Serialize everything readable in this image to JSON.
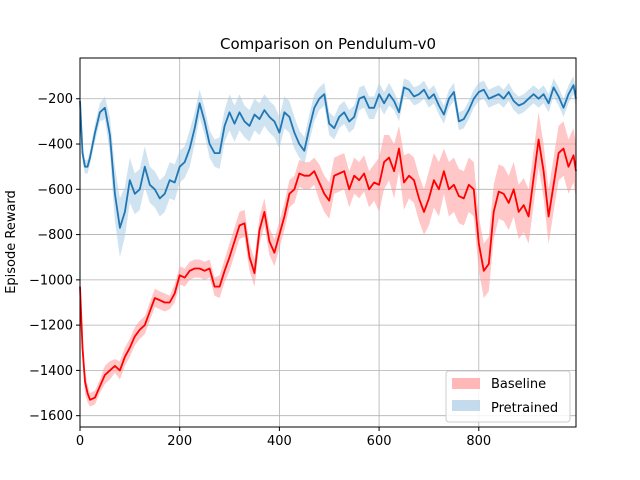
{
  "chart_data": {
    "type": "line",
    "title": "Comparison on Pendulum-v0",
    "xlabel": "",
    "ylabel": "Episode Reward",
    "xlim": [
      0,
      995
    ],
    "ylim": [
      -1650,
      -20
    ],
    "xticks": [
      0,
      200,
      400,
      600,
      800
    ],
    "yticks": [
      -1600,
      -1400,
      -1200,
      -1000,
      -800,
      -600,
      -400,
      -200
    ],
    "grid": true,
    "legend_position": "lower-right",
    "series": [
      {
        "name": "Baseline",
        "color": "#ff0000",
        "band_color": "#ff9999",
        "x": [
          0,
          5,
          10,
          15,
          20,
          30,
          40,
          50,
          60,
          70,
          80,
          90,
          100,
          110,
          120,
          130,
          140,
          150,
          160,
          170,
          180,
          190,
          200,
          210,
          220,
          230,
          240,
          250,
          260,
          270,
          280,
          290,
          300,
          310,
          320,
          330,
          340,
          350,
          360,
          370,
          380,
          390,
          400,
          410,
          420,
          430,
          440,
          450,
          460,
          470,
          480,
          490,
          500,
          510,
          520,
          530,
          540,
          550,
          560,
          570,
          580,
          590,
          600,
          610,
          620,
          630,
          640,
          650,
          660,
          670,
          680,
          690,
          700,
          710,
          720,
          730,
          740,
          750,
          760,
          770,
          780,
          790,
          800,
          810,
          820,
          830,
          840,
          850,
          860,
          870,
          880,
          890,
          900,
          910,
          920,
          930,
          940,
          950,
          960,
          970,
          980,
          990,
          995
        ],
        "y": [
          -1030,
          -1300,
          -1450,
          -1500,
          -1530,
          -1520,
          -1470,
          -1420,
          -1400,
          -1380,
          -1400,
          -1340,
          -1300,
          -1250,
          -1220,
          -1200,
          -1140,
          -1080,
          -1090,
          -1100,
          -1100,
          -1060,
          -980,
          -990,
          -960,
          -950,
          -950,
          -960,
          -950,
          -1030,
          -1030,
          -960,
          -900,
          -830,
          -760,
          -750,
          -900,
          -970,
          -780,
          -700,
          -830,
          -880,
          -800,
          -720,
          -620,
          -600,
          -530,
          -540,
          -540,
          -520,
          -570,
          -620,
          -650,
          -540,
          -530,
          -520,
          -600,
          -540,
          -560,
          -530,
          -600,
          -570,
          -580,
          -480,
          -460,
          -520,
          -420,
          -570,
          -540,
          -560,
          -640,
          -700,
          -640,
          -560,
          -600,
          -520,
          -600,
          -580,
          -630,
          -640,
          -580,
          -600,
          -840,
          -960,
          -930,
          -700,
          -610,
          -620,
          -660,
          -600,
          -700,
          -670,
          -720,
          -550,
          -380,
          -520,
          -720,
          -580,
          -440,
          -420,
          -500,
          -450,
          -520
        ],
        "band": [
          60,
          60,
          50,
          40,
          30,
          30,
          30,
          40,
          40,
          30,
          40,
          40,
          40,
          40,
          40,
          40,
          40,
          40,
          40,
          40,
          30,
          40,
          40,
          40,
          40,
          40,
          40,
          40,
          40,
          40,
          50,
          50,
          60,
          60,
          60,
          60,
          60,
          60,
          60,
          60,
          60,
          60,
          60,
          60,
          60,
          60,
          60,
          60,
          60,
          60,
          80,
          80,
          80,
          80,
          80,
          80,
          80,
          80,
          80,
          80,
          80,
          80,
          120,
          120,
          100,
          120,
          100,
          120,
          100,
          100,
          100,
          100,
          120,
          120,
          120,
          100,
          120,
          120,
          120,
          120,
          120,
          120,
          120,
          120,
          120,
          120,
          120,
          120,
          120,
          120,
          120,
          120,
          120,
          120,
          120,
          120,
          120,
          120,
          120,
          120,
          120,
          120,
          120,
          120
        ]
      },
      {
        "name": "Pretrained",
        "color": "#1f77b4",
        "band_color": "#a9cce6",
        "x": [
          0,
          5,
          10,
          15,
          20,
          30,
          40,
          50,
          60,
          70,
          80,
          90,
          100,
          110,
          120,
          130,
          140,
          150,
          160,
          170,
          180,
          190,
          200,
          210,
          220,
          230,
          240,
          250,
          260,
          270,
          280,
          290,
          300,
          310,
          320,
          330,
          340,
          350,
          360,
          370,
          380,
          390,
          400,
          410,
          420,
          430,
          440,
          450,
          460,
          470,
          480,
          490,
          500,
          510,
          520,
          530,
          540,
          550,
          560,
          570,
          580,
          590,
          600,
          610,
          620,
          630,
          640,
          650,
          660,
          670,
          680,
          690,
          700,
          710,
          720,
          730,
          740,
          750,
          760,
          770,
          780,
          790,
          800,
          810,
          820,
          830,
          840,
          850,
          860,
          870,
          880,
          890,
          900,
          910,
          920,
          930,
          940,
          950,
          960,
          970,
          980,
          990,
          995
        ],
        "y": [
          -210,
          -440,
          -500,
          -500,
          -460,
          -350,
          -260,
          -240,
          -360,
          -620,
          -770,
          -700,
          -560,
          -620,
          -600,
          -500,
          -580,
          -600,
          -640,
          -620,
          -560,
          -570,
          -500,
          -480,
          -420,
          -330,
          -220,
          -300,
          -400,
          -440,
          -440,
          -320,
          -260,
          -310,
          -260,
          -300,
          -320,
          -270,
          -290,
          -250,
          -280,
          -300,
          -350,
          -260,
          -280,
          -350,
          -400,
          -430,
          -330,
          -240,
          -200,
          -180,
          -310,
          -330,
          -280,
          -260,
          -300,
          -280,
          -200,
          -190,
          -240,
          -240,
          -180,
          -220,
          -180,
          -210,
          -260,
          -150,
          -160,
          -190,
          -180,
          -160,
          -200,
          -180,
          -230,
          -270,
          -200,
          -170,
          -300,
          -290,
          -250,
          -200,
          -170,
          -160,
          -200,
          -190,
          -180,
          -200,
          -170,
          -210,
          -230,
          -220,
          -200,
          -180,
          -200,
          -180,
          -220,
          -150,
          -190,
          -240,
          -180,
          -140,
          -200
        ],
        "band": [
          40,
          40,
          30,
          30,
          30,
          40,
          40,
          50,
          80,
          120,
          130,
          110,
          100,
          90,
          90,
          90,
          80,
          80,
          80,
          80,
          80,
          80,
          70,
          70,
          80,
          70,
          60,
          60,
          60,
          60,
          70,
          70,
          80,
          80,
          80,
          70,
          70,
          70,
          70,
          70,
          70,
          70,
          70,
          70,
          70,
          70,
          60,
          60,
          60,
          60,
          50,
          50,
          50,
          50,
          50,
          50,
          50,
          50,
          50,
          50,
          50,
          50,
          50,
          50,
          50,
          40,
          40,
          40,
          40,
          40,
          40,
          40,
          40,
          40,
          40,
          40,
          40,
          40,
          40,
          40,
          40,
          40,
          40,
          40,
          40,
          40,
          40,
          40,
          40,
          40,
          40,
          40,
          40,
          40,
          40,
          40,
          40,
          40,
          40,
          40,
          40,
          40,
          40,
          40
        ]
      }
    ]
  }
}
